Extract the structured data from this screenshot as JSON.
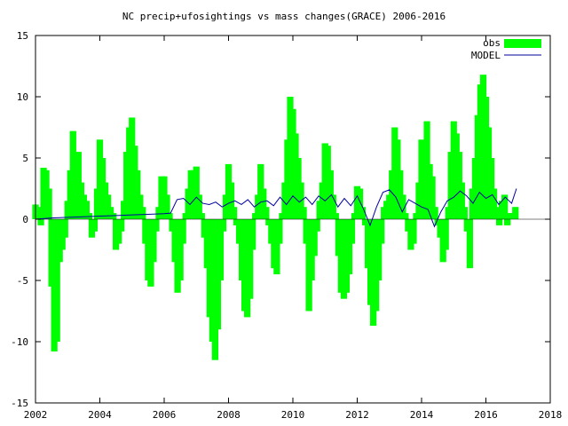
{
  "chart_data": {
    "type": "bar",
    "title": "NC precip+ufosightings vs mass changes(GRACE) 2006-2016",
    "xlabel": "",
    "ylabel": "",
    "xlim": [
      2002,
      2018
    ],
    "ylim": [
      -15,
      15
    ],
    "x_ticks": [
      "2002",
      "2004",
      "2006",
      "2008",
      "2010",
      "2012",
      "2014",
      "2016",
      "2018"
    ],
    "y_ticks": [
      "15",
      "10",
      "5",
      "0",
      "-5",
      "-10",
      "-15"
    ],
    "legend_position": "top-right",
    "grid": false,
    "bar_width_years": 0.2,
    "series": [
      {
        "name": "obs",
        "style": "boxes",
        "color": "#00ff00",
        "x": [
          2002.0,
          2002.083,
          2002.167,
          2002.25,
          2002.333,
          2002.417,
          2002.5,
          2002.583,
          2002.667,
          2002.75,
          2002.833,
          2002.917,
          2003.0,
          2003.083,
          2003.167,
          2003.25,
          2003.333,
          2003.417,
          2003.5,
          2003.583,
          2003.667,
          2003.75,
          2003.833,
          2003.917,
          2004.0,
          2004.083,
          2004.167,
          2004.25,
          2004.333,
          2004.417,
          2004.5,
          2004.583,
          2004.667,
          2004.75,
          2004.833,
          2004.917,
          2005.0,
          2005.083,
          2005.167,
          2005.25,
          2005.333,
          2005.417,
          2005.5,
          2005.583,
          2005.667,
          2005.75,
          2005.833,
          2005.917,
          2006.0,
          2006.083,
          2006.167,
          2006.25,
          2006.333,
          2006.417,
          2006.5,
          2006.583,
          2006.667,
          2006.75,
          2006.833,
          2006.917,
          2007.0,
          2007.083,
          2007.167,
          2007.25,
          2007.333,
          2007.417,
          2007.5,
          2007.583,
          2007.667,
          2007.75,
          2007.833,
          2007.917,
          2008.0,
          2008.083,
          2008.167,
          2008.25,
          2008.333,
          2008.417,
          2008.5,
          2008.583,
          2008.667,
          2008.75,
          2008.833,
          2008.917,
          2009.0,
          2009.083,
          2009.167,
          2009.25,
          2009.333,
          2009.417,
          2009.5,
          2009.583,
          2009.667,
          2009.75,
          2009.833,
          2009.917,
          2010.0,
          2010.083,
          2010.167,
          2010.25,
          2010.333,
          2010.417,
          2010.5,
          2010.583,
          2010.667,
          2010.75,
          2010.833,
          2010.917,
          2011.0,
          2011.083,
          2011.167,
          2011.25,
          2011.333,
          2011.417,
          2011.5,
          2011.583,
          2011.667,
          2011.75,
          2011.833,
          2011.917,
          2012.0,
          2012.083,
          2012.167,
          2012.25,
          2012.333,
          2012.417,
          2012.5,
          2012.583,
          2012.667,
          2012.75,
          2012.833,
          2012.917,
          2013.0,
          2013.083,
          2013.167,
          2013.25,
          2013.333,
          2013.417,
          2013.5,
          2013.583,
          2013.667,
          2013.75,
          2013.833,
          2013.917,
          2014.0,
          2014.083,
          2014.167,
          2014.25,
          2014.333,
          2014.417,
          2014.5,
          2014.583,
          2014.667,
          2014.75,
          2014.833,
          2014.917,
          2015.0,
          2015.083,
          2015.167,
          2015.25,
          2015.333,
          2015.417,
          2015.5,
          2015.583,
          2015.667,
          2015.75,
          2015.833,
          2015.917,
          2016.0,
          2016.083,
          2016.167,
          2016.25,
          2016.333,
          2016.417,
          2016.5,
          2016.583,
          2016.667,
          2016.75,
          2016.833,
          2016.917
        ],
        "values": [
          1.2,
          1.0,
          -0.5,
          4.2,
          4.0,
          2.5,
          -5.5,
          -10.8,
          -10.0,
          -3.5,
          -2.5,
          -1.5,
          1.5,
          4.0,
          7.2,
          4.5,
          5.5,
          3.0,
          2.0,
          1.5,
          0.5,
          -1.5,
          -1.0,
          2.5,
          6.5,
          5.0,
          3.0,
          2.0,
          1.0,
          0.5,
          -2.5,
          -2.0,
          -1.0,
          1.5,
          5.5,
          7.5,
          8.3,
          6.0,
          4.0,
          2.0,
          1.0,
          -2.0,
          -5.0,
          -5.5,
          -3.5,
          -1.0,
          1.0,
          3.5,
          3.5,
          2.0,
          0.5,
          -1.0,
          -3.5,
          -6.0,
          -5.0,
          -2.0,
          0.5,
          2.5,
          4.0,
          4.0,
          4.3,
          2.0,
          0.5,
          -1.5,
          -4.0,
          -8.0,
          -10.0,
          -11.5,
          -9.0,
          -5.0,
          -1.0,
          2.0,
          4.5,
          3.0,
          1.0,
          -0.5,
          -2.0,
          -5.0,
          -7.5,
          -8.0,
          -6.5,
          -2.5,
          0.5,
          2.0,
          4.5,
          2.5,
          1.0,
          -0.5,
          -2.0,
          -4.0,
          -4.5,
          -2.0,
          0.5,
          3.0,
          6.5,
          10.0,
          9.0,
          7.0,
          5.0,
          3.0,
          1.0,
          -2.0,
          -7.5,
          -5.0,
          -3.0,
          -1.0,
          1.5,
          3.0,
          6.2,
          6.0,
          4.0,
          2.0,
          0.5,
          -3.0,
          -6.0,
          -6.5,
          -6.0,
          -4.5,
          -2.0,
          0.5,
          2.7,
          2.5,
          1.0,
          -0.5,
          -4.0,
          -7.0,
          -8.7,
          -7.5,
          -5.0,
          -2.0,
          1.0,
          1.5,
          2.0,
          4.0,
          7.5,
          6.5,
          4.0,
          2.0,
          0.5,
          -1.0,
          -2.5,
          -2.0,
          0.5,
          3.0,
          6.5,
          5.0,
          8.0,
          4.5,
          3.5,
          1.0,
          -0.5,
          -1.5,
          -3.5,
          -2.5,
          1.0,
          5.5,
          8.0,
          7.0,
          5.5,
          3.0,
          1.0,
          -1.0,
          -4.0,
          2.5,
          5.0,
          8.5,
          11.0,
          11.8,
          10.0,
          7.5,
          5.0,
          2.5,
          1.0,
          -0.5,
          1.5,
          2.0,
          -0.5,
          0.5,
          0.5,
          1.0
        ]
      },
      {
        "name": "MODEL",
        "style": "line",
        "color": "#0000a0",
        "x": [
          2002.0,
          2002.5,
          2003.0,
          2003.5,
          2004.0,
          2004.5,
          2005.0,
          2005.5,
          2006.0,
          2006.2,
          2006.4,
          2006.6,
          2006.8,
          2007.0,
          2007.2,
          2007.4,
          2007.6,
          2007.8,
          2008.0,
          2008.2,
          2008.4,
          2008.6,
          2008.8,
          2009.0,
          2009.2,
          2009.4,
          2009.6,
          2009.8,
          2010.0,
          2010.2,
          2010.4,
          2010.6,
          2010.8,
          2011.0,
          2011.2,
          2011.4,
          2011.6,
          2011.8,
          2012.0,
          2012.2,
          2012.4,
          2012.6,
          2012.8,
          2013.0,
          2013.2,
          2013.4,
          2013.6,
          2013.8,
          2014.0,
          2014.2,
          2014.4,
          2014.6,
          2014.8,
          2015.0,
          2015.2,
          2015.4,
          2015.6,
          2015.8,
          2016.0,
          2016.2,
          2016.4,
          2016.6,
          2016.8,
          2016.95
        ],
        "values": [
          0.0,
          0.1,
          0.15,
          0.2,
          0.25,
          0.3,
          0.35,
          0.4,
          0.45,
          0.5,
          1.6,
          1.7,
          1.2,
          1.8,
          1.3,
          1.2,
          1.4,
          1.0,
          1.3,
          1.5,
          1.2,
          1.6,
          1.0,
          1.4,
          1.5,
          1.1,
          1.8,
          1.2,
          1.9,
          1.4,
          1.8,
          1.2,
          1.9,
          1.5,
          2.0,
          1.0,
          1.7,
          1.1,
          1.9,
          0.8,
          -0.5,
          1.0,
          2.2,
          2.4,
          1.8,
          0.6,
          1.6,
          1.3,
          1.0,
          0.8,
          -0.6,
          0.6,
          1.5,
          1.8,
          2.3,
          1.9,
          1.3,
          2.2,
          1.7,
          2.0,
          1.2,
          1.8,
          1.3,
          2.5
        ]
      }
    ]
  }
}
